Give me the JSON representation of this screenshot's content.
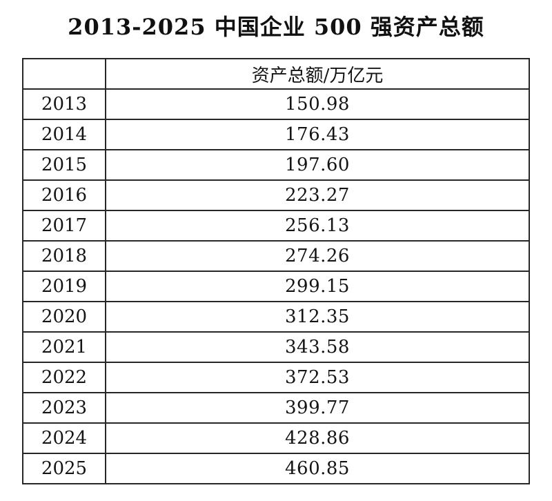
{
  "title": "2013-2025 中国企业 500 强资产总额",
  "table": {
    "corner_label": "",
    "value_header": "资产总额/万亿元",
    "rows": [
      {
        "year": "2013",
        "value": "150.98"
      },
      {
        "year": "2014",
        "value": "176.43"
      },
      {
        "year": "2015",
        "value": "197.60"
      },
      {
        "year": "2016",
        "value": "223.27"
      },
      {
        "year": "2017",
        "value": "256.13"
      },
      {
        "year": "2018",
        "value": "274.26"
      },
      {
        "year": "2019",
        "value": "299.15"
      },
      {
        "year": "2020",
        "value": "312.35"
      },
      {
        "year": "2021",
        "value": "343.58"
      },
      {
        "year": "2022",
        "value": "372.53"
      },
      {
        "year": "2023",
        "value": "399.77"
      },
      {
        "year": "2024",
        "value": "428.86"
      },
      {
        "year": "2025",
        "value": "460.85"
      }
    ]
  },
  "chart_data": {
    "type": "table",
    "title": "2013-2025 中国企业 500 强资产总额",
    "columns": [
      "",
      "资产总额/万亿元"
    ],
    "categories": [
      2013,
      2014,
      2015,
      2016,
      2017,
      2018,
      2019,
      2020,
      2021,
      2022,
      2023,
      2024,
      2025
    ],
    "values": [
      150.98,
      176.43,
      197.6,
      223.27,
      256.13,
      274.26,
      299.15,
      312.35,
      343.58,
      372.53,
      399.77,
      428.86,
      460.85
    ]
  }
}
